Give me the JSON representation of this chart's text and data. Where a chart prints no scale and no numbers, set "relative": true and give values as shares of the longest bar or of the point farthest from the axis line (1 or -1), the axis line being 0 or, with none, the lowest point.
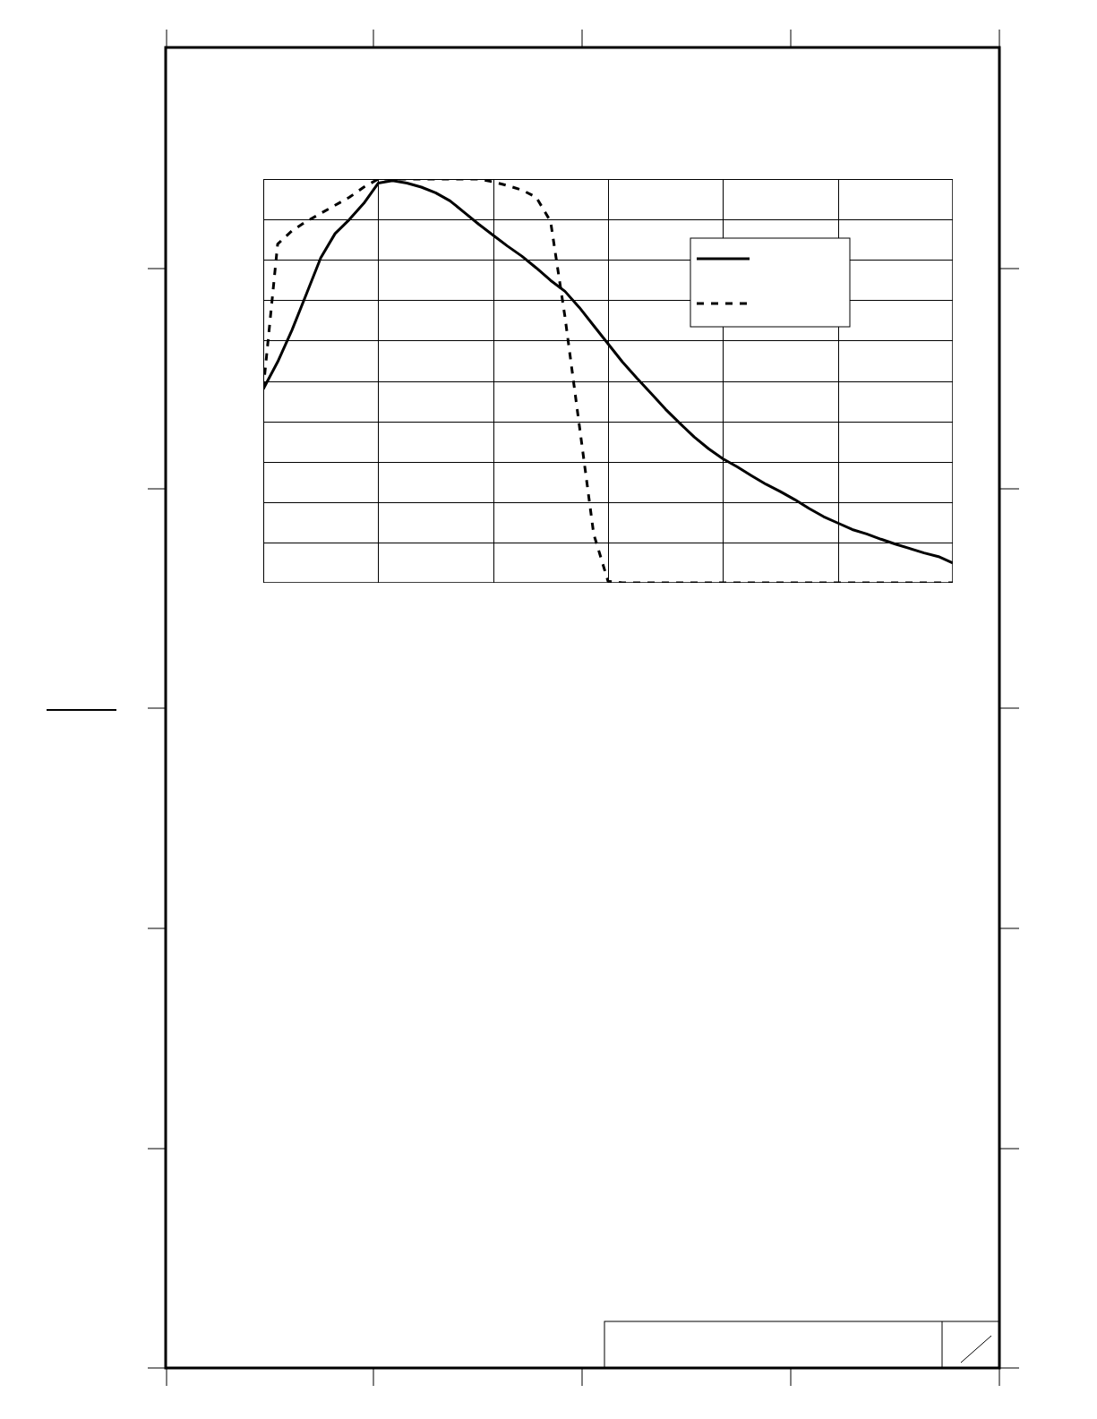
{
  "chart_data": {
    "type": "line",
    "relative": true,
    "grid": true,
    "categories": [
      null,
      null,
      null,
      null,
      null,
      null,
      null,
      null,
      null,
      null,
      null,
      null,
      null,
      null,
      null,
      null,
      null,
      null,
      null,
      null,
      null,
      null,
      null,
      null,
      null,
      null,
      null,
      null,
      null,
      null,
      null,
      null,
      null,
      null,
      null,
      null,
      null,
      null,
      null,
      null,
      null,
      null,
      null,
      null,
      null,
      null,
      null,
      null,
      null
    ],
    "series": [
      {
        "color": "#000000",
        "line_style": "solid",
        "values": [
          0.48,
          0.547,
          0.626,
          0.715,
          0.805,
          0.865,
          0.9,
          0.94,
          0.99,
          0.996,
          0.99,
          0.98,
          0.966,
          0.946,
          0.917,
          0.888,
          0.861,
          0.834,
          0.809,
          0.78,
          0.749,
          0.722,
          0.682,
          0.637,
          0.592,
          0.547,
          0.507,
          0.469,
          0.43,
          0.395,
          0.361,
          0.332,
          0.307,
          0.287,
          0.265,
          0.244,
          0.226,
          0.206,
          0.184,
          0.164,
          0.148,
          0.132,
          0.121,
          0.108,
          0.096,
          0.085,
          0.074,
          0.065,
          0.049
        ]
      },
      {
        "color": "#000000",
        "line_style": "dashed",
        "values": [
          0.48,
          0.839,
          0.872,
          0.895,
          0.915,
          0.935,
          0.955,
          0.98,
          1,
          1,
          1,
          1,
          1,
          1,
          1,
          1,
          0.993,
          0.984,
          0.973,
          0.955,
          0.895,
          0.659,
          0.39,
          0.121,
          0.004,
          0,
          0,
          0,
          0,
          0,
          0,
          0,
          0,
          0,
          0,
          0,
          0,
          0,
          0,
          0,
          0,
          0,
          0,
          0,
          0,
          0,
          0,
          0,
          0
        ]
      }
    ]
  }
}
